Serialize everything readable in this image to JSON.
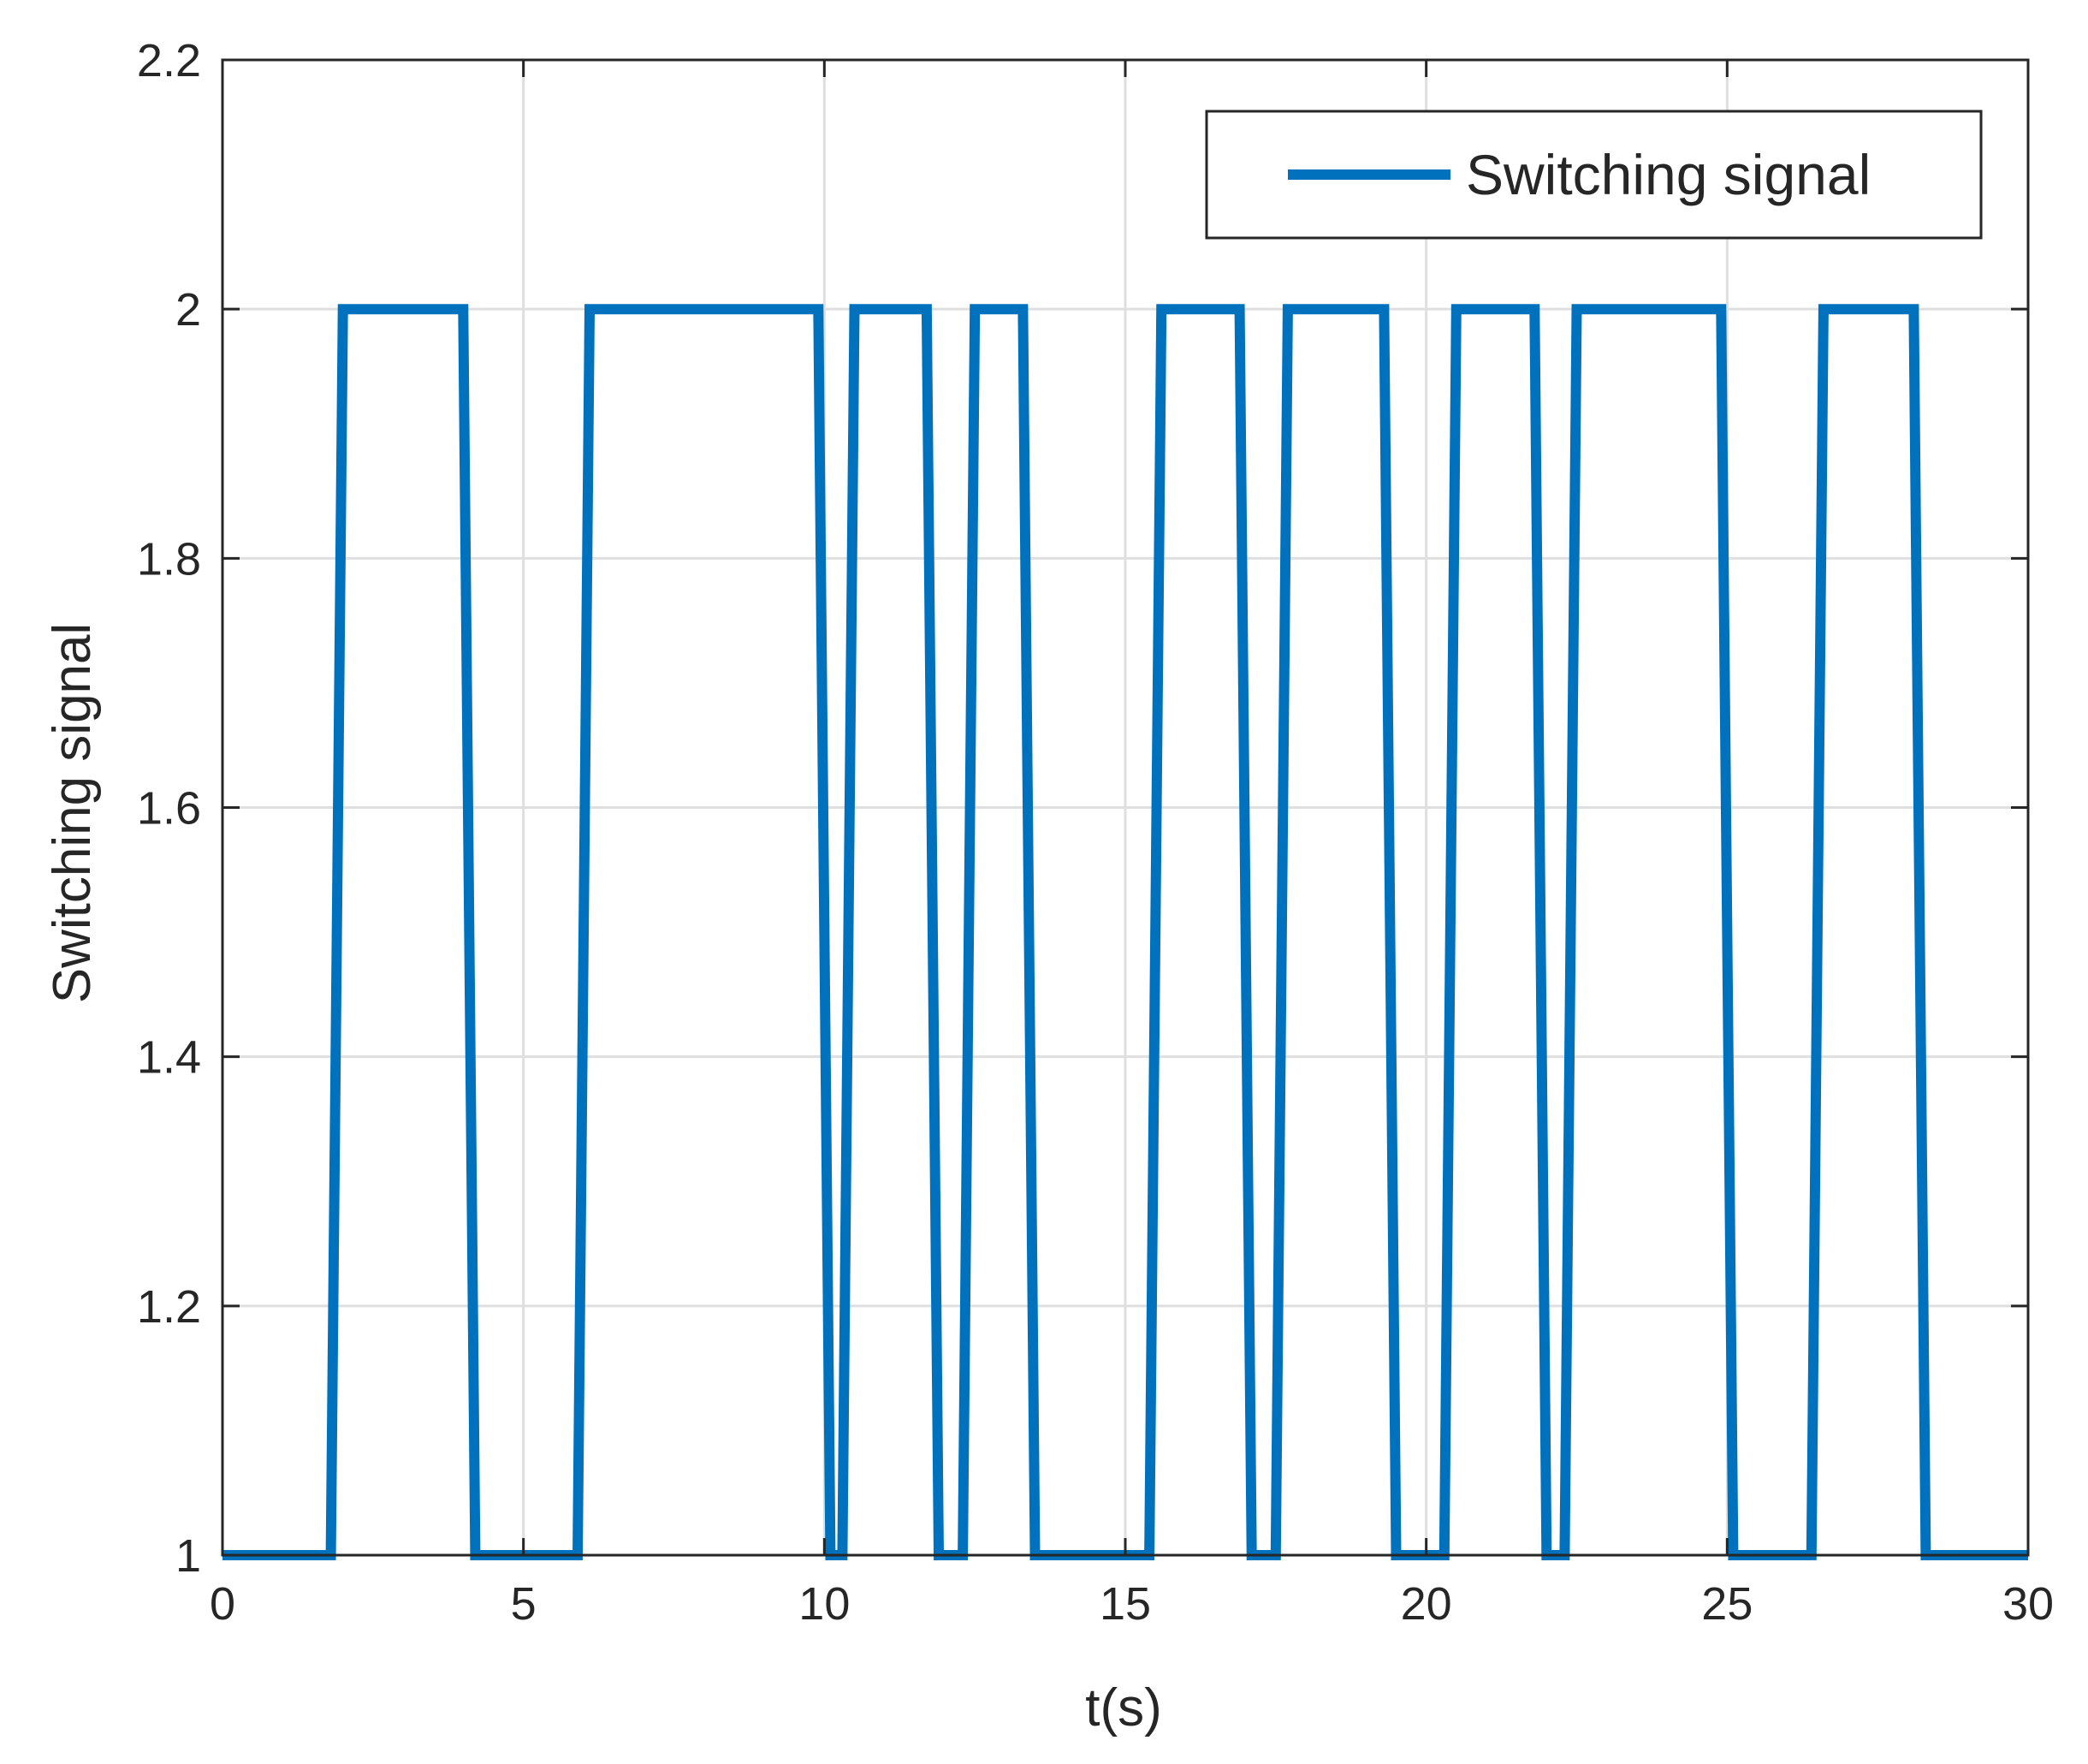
{
  "chart_data": {
    "type": "line",
    "title": "",
    "xlabel": "t(s)",
    "ylabel": "Switching signal",
    "xlim": [
      0,
      30
    ],
    "ylim": [
      1,
      2.2
    ],
    "xticks": [
      "0",
      "5",
      "10",
      "15",
      "20",
      "25",
      "30"
    ],
    "yticks": [
      "1",
      "1.2",
      "1.4",
      "1.6",
      "1.8",
      "2",
      "2.2"
    ],
    "grid": true,
    "legend_position": "top-right",
    "series": [
      {
        "name": "Switching signal",
        "color": "#0072BD",
        "x": [
          0,
          1.8,
          2.0,
          4.0,
          4.2,
          5.9,
          6.1,
          9.9,
          10.1,
          10.3,
          10.5,
          11.7,
          11.9,
          12.3,
          12.5,
          13.3,
          13.5,
          15.4,
          15.6,
          16.9,
          17.1,
          17.5,
          17.7,
          19.3,
          19.5,
          20.3,
          20.5,
          21.8,
          22.0,
          22.3,
          22.5,
          24.9,
          25.1,
          26.4,
          26.6,
          28.1,
          28.3,
          30
        ],
        "y": [
          1,
          1,
          2,
          2,
          1,
          1,
          2,
          2,
          1,
          1,
          2,
          2,
          1,
          1,
          2,
          2,
          1,
          1,
          2,
          2,
          1,
          1,
          2,
          2,
          1,
          1,
          2,
          2,
          1,
          1,
          2,
          2,
          1,
          1,
          2,
          2,
          1,
          1
        ]
      }
    ]
  }
}
